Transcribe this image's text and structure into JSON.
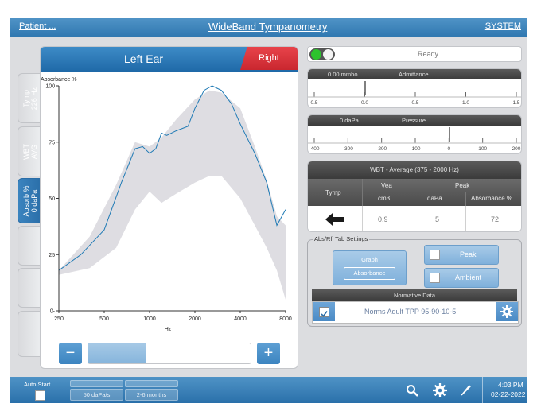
{
  "topbar": {
    "patient_label": "Patient ...",
    "title": "WideBand Tympanometry",
    "system_label": "SYSTEM"
  },
  "ear_header": {
    "title": "Left Ear",
    "right_button": "Right"
  },
  "side_tabs": [
    {
      "label": "Tymp\n226 Hz",
      "active": false
    },
    {
      "label": "WBT\nAVG",
      "active": false
    },
    {
      "label": "Absorb %\n0 daPa",
      "active": true
    },
    {
      "label": "",
      "active": false
    },
    {
      "label": "",
      "active": false
    },
    {
      "label": "",
      "active": false
    }
  ],
  "chart_data": {
    "type": "line",
    "ylabel": "Absorbance %",
    "xlabel": "Hz",
    "x_scale": "log",
    "xlim": [
      250,
      8000
    ],
    "ylim": [
      0,
      100
    ],
    "x_ticks": [
      "250",
      "500",
      "1000",
      "2000",
      "4000",
      "8000"
    ],
    "y_ticks": [
      "0",
      "25",
      "50",
      "75",
      "100"
    ],
    "norm_band": {
      "x": [
        250,
        400,
        600,
        800,
        1000,
        1200,
        1500,
        2000,
        2500,
        3000,
        4000,
        5000,
        6000,
        7000,
        8000
      ],
      "lower": [
        16,
        19,
        28,
        45,
        53,
        48,
        52,
        57,
        60,
        60,
        50,
        38,
        28,
        18,
        5
      ],
      "upper": [
        18,
        33,
        56,
        75,
        73,
        77,
        85,
        94,
        98,
        97,
        90,
        73,
        58,
        42,
        38
      ]
    },
    "series": [
      {
        "color": "#1f7ab5",
        "x": [
          250,
          350,
          500,
          650,
          800,
          900,
          1000,
          1100,
          1200,
          1300,
          1500,
          1800,
          2000,
          2300,
          2600,
          3000,
          3500,
          4000,
          5000,
          6000,
          7000,
          8000
        ],
        "y": [
          18,
          25,
          36,
          57,
          72,
          73,
          70,
          72,
          79,
          78,
          80,
          82,
          90,
          98,
          100,
          98,
          92,
          83,
          70,
          57,
          38,
          45
        ]
      }
    ]
  },
  "pressure_control": {
    "value_label": "0",
    "unit_label": "daPa",
    "minus_label": "−",
    "plus_label": "+",
    "value_fraction": 0.5
  },
  "status": {
    "label": "Ready"
  },
  "admittance": {
    "value_label": "0.00 mmho",
    "title": "Admittance",
    "ticks": [
      "0.5",
      "0.0",
      "0.5",
      "1.0",
      "1.5"
    ]
  },
  "pressure": {
    "value_label": "0 daPa",
    "title": "Pressure",
    "ticks": [
      "-400",
      "-300",
      "-200",
      "-100",
      "0",
      "100",
      "200"
    ]
  },
  "wbt_table": {
    "title": "WBT - Average (375 - 2000 Hz)",
    "col_tymp": "Tymp",
    "col_vea": "Vea",
    "col_peak": "Peak",
    "sub_cm3": "cm3",
    "sub_dapa": "daPa",
    "sub_absorbance": "Absorbance %",
    "val_vea": "0.9",
    "val_dapa": "5",
    "val_absorbance": "72"
  },
  "tab_settings": {
    "title": "Abs/Rfl Tab Settings",
    "graph_label": "Graph",
    "graph_value": "Absorbance",
    "peak_label": "Peak",
    "ambient_label": "Ambient",
    "peak_checked": false,
    "ambient_checked": false
  },
  "normative": {
    "title": "Normative Data",
    "checked": true,
    "value": "Norms Adult TPP 95-90-10-5"
  },
  "bottombar": {
    "auto_start_label": "Auto Start",
    "btn1": "50 daPa/s",
    "btn2": "2-6 months",
    "time": "4:03 PM",
    "date": "02-22-2022"
  },
  "colors": {
    "brand_blue": "#2f77b0",
    "right_red": "#d9313a",
    "norm_band": "#dedde2",
    "status_green": "#2dc32d"
  },
  "icons": [
    "search-icon",
    "gear-icon",
    "pencil-icon",
    "back-arrow-icon",
    "check-icon"
  ]
}
